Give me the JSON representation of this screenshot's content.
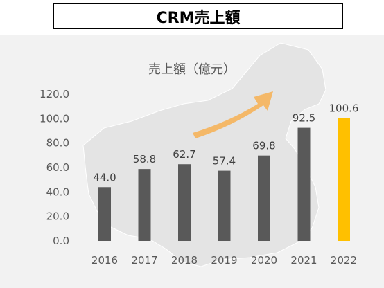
{
  "header": {
    "title": "CRM売上額"
  },
  "chart_data": {
    "type": "bar",
    "title": "売上額（億元）",
    "categories": [
      "2016",
      "2017",
      "2018",
      "2019",
      "2020",
      "2021",
      "2022"
    ],
    "values": [
      44.0,
      58.8,
      62.7,
      57.4,
      69.8,
      92.5,
      100.6
    ],
    "data_labels": [
      "44.0",
      "58.8",
      "62.7",
      "57.4",
      "69.8",
      "92.5",
      "100.6"
    ],
    "ylim": [
      0,
      120
    ],
    "yticks": [
      "0.0",
      "20.0",
      "40.0",
      "60.0",
      "80.0",
      "100.0",
      "120.0"
    ],
    "grid": false,
    "colors": {
      "bar": "#595959",
      "highlight_bar": "#ffc000",
      "arrow": "#f5b35a",
      "map": "#e4e4e4",
      "background": "#f2f2f2"
    },
    "highlight_index": 6,
    "decoration": {
      "background_map": "china-map",
      "arrow": "upward-trend-arrow"
    }
  }
}
